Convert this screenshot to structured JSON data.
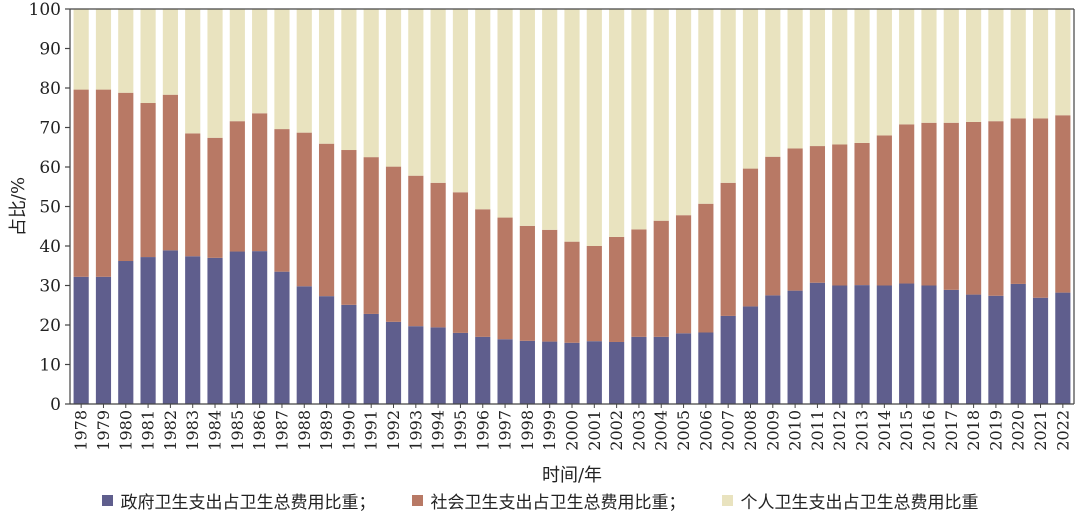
{
  "chart_data": {
    "type": "bar",
    "stacked": true,
    "xlabel": "时间/年",
    "ylabel": "占比/%",
    "ylim": [
      0,
      100
    ],
    "yticks": [
      0,
      10,
      20,
      30,
      40,
      50,
      60,
      70,
      80,
      90,
      100
    ],
    "legend_position": "bottom",
    "grid": false,
    "categories": [
      "1978",
      "1979",
      "1980",
      "1981",
      "1982",
      "1983",
      "1984",
      "1985",
      "1986",
      "1987",
      "1988",
      "1989",
      "1990",
      "1991",
      "1992",
      "1993",
      "1994",
      "1995",
      "1996",
      "1997",
      "1998",
      "1999",
      "2000",
      "2001",
      "2002",
      "2003",
      "2004",
      "2005",
      "2006",
      "2007",
      "2008",
      "2009",
      "2010",
      "2011",
      "2012",
      "2013",
      "2014",
      "2015",
      "2016",
      "2017",
      "2018",
      "2019",
      "2020",
      "2021",
      "2022"
    ],
    "series": [
      {
        "name": "政府卫生支出占卫生总费用比重；",
        "color": "#5f5e8d",
        "values": [
          32.2,
          32.2,
          36.2,
          37.2,
          38.9,
          37.4,
          37.0,
          38.6,
          38.7,
          33.5,
          29.8,
          27.3,
          25.1,
          22.8,
          20.8,
          19.7,
          19.4,
          18.0,
          17.0,
          16.4,
          16.0,
          15.8,
          15.5,
          15.9,
          15.7,
          17.0,
          17.0,
          17.9,
          18.1,
          22.3,
          24.7,
          27.5,
          28.7,
          30.7,
          30.0,
          30.1,
          30.0,
          30.5,
          30.0,
          28.9,
          27.7,
          27.4,
          30.4,
          26.9,
          28.2
        ]
      },
      {
        "name": "社会卫生支出占卫生总费用比重；",
        "color": "#b87965",
        "values": [
          47.4,
          47.4,
          42.6,
          39.0,
          39.4,
          31.1,
          30.4,
          33.0,
          34.9,
          36.1,
          38.9,
          38.6,
          39.2,
          39.7,
          39.3,
          38.1,
          36.6,
          35.6,
          32.3,
          30.8,
          29.1,
          28.3,
          25.6,
          24.1,
          26.6,
          27.2,
          29.4,
          29.9,
          32.6,
          33.7,
          34.9,
          35.1,
          36.0,
          34.6,
          35.7,
          36.0,
          38.0,
          40.3,
          41.2,
          42.3,
          43.7,
          44.2,
          41.9,
          45.4,
          44.9
        ]
      },
      {
        "name": "个人卫生支出占卫生总费用比重",
        "color": "#e9e3bf",
        "values": [
          20.4,
          20.4,
          21.2,
          23.8,
          21.7,
          31.5,
          32.6,
          28.4,
          26.4,
          30.4,
          31.3,
          34.1,
          35.7,
          37.5,
          39.9,
          42.2,
          44.0,
          46.4,
          50.7,
          52.8,
          54.9,
          55.9,
          58.9,
          60.0,
          57.7,
          55.8,
          53.6,
          52.2,
          49.3,
          44.0,
          40.4,
          37.4,
          35.3,
          34.7,
          34.3,
          33.9,
          32.0,
          29.2,
          28.8,
          28.8,
          28.6,
          28.4,
          27.7,
          27.7,
          26.9
        ]
      }
    ]
  }
}
